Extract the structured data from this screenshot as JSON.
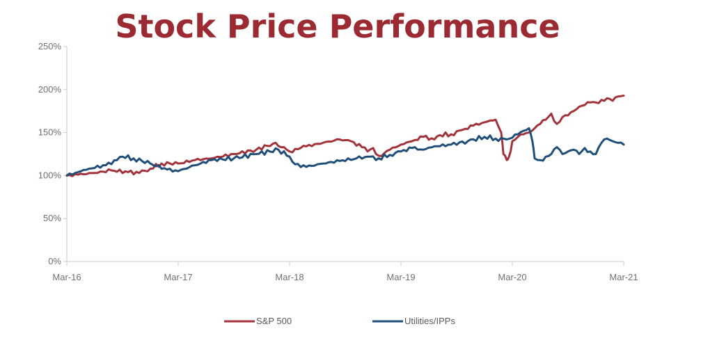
{
  "chart_data": {
    "type": "line",
    "title": "Stock Price Performance",
    "xlabel": "",
    "ylabel": "",
    "x_tick_labels": [
      "Mar-16",
      "Mar-17",
      "Mar-18",
      "Mar-19",
      "Mar-20",
      "Mar-21"
    ],
    "y_tick_labels": [
      "0%",
      "50%",
      "100%",
      "150%",
      "200%",
      "250%"
    ],
    "xlim": [
      0,
      5
    ],
    "ylim": [
      0,
      250
    ],
    "grid": false,
    "legend_position": "bottom",
    "series": [
      {
        "name": "S&P 500",
        "color": "#a3333a",
        "x": [
          0,
          0.1,
          0.25,
          0.4,
          0.55,
          0.65,
          0.75,
          0.85,
          1.0,
          1.15,
          1.3,
          1.5,
          1.7,
          1.85,
          1.95,
          2.0,
          2.05,
          2.15,
          2.3,
          2.45,
          2.55,
          2.65,
          2.7,
          2.75,
          2.8,
          2.85,
          2.9,
          3.0,
          3.1,
          3.2,
          3.3,
          3.35,
          3.45,
          3.55,
          3.65,
          3.75,
          3.85,
          3.9,
          3.92,
          3.95,
          3.97,
          4.0,
          4.05,
          4.1,
          4.15,
          4.2,
          4.25,
          4.3,
          4.35,
          4.4,
          4.45,
          4.5,
          4.55,
          4.6,
          4.65,
          4.7,
          4.75,
          4.8,
          4.85,
          4.9,
          4.95,
          5.0
        ],
        "values": [
          100,
          101,
          103,
          106,
          104,
          103,
          108,
          114,
          114,
          118,
          120,
          125,
          130,
          137,
          133,
          128,
          131,
          134,
          138,
          142,
          140,
          133,
          128,
          132,
          123,
          126,
          130,
          136,
          140,
          145,
          142,
          147,
          148,
          153,
          158,
          162,
          165,
          150,
          125,
          118,
          122,
          140,
          145,
          148,
          150,
          155,
          160,
          165,
          172,
          160,
          168,
          170,
          175,
          180,
          182,
          185,
          185,
          188,
          190,
          187,
          192,
          193
        ]
      },
      {
        "name": "Utilities/IPPs",
        "color": "#1f4e79",
        "x": [
          0,
          0.1,
          0.2,
          0.35,
          0.45,
          0.5,
          0.6,
          0.75,
          0.9,
          1.0,
          1.15,
          1.3,
          1.5,
          1.7,
          1.9,
          2.0,
          2.05,
          2.15,
          2.3,
          2.45,
          2.6,
          2.7,
          2.8,
          2.9,
          3.0,
          3.1,
          3.2,
          3.3,
          3.45,
          3.6,
          3.75,
          3.85,
          3.95,
          4.0,
          4.05,
          4.1,
          4.15,
          4.18,
          4.2,
          4.25,
          4.3,
          4.35,
          4.4,
          4.45,
          4.5,
          4.55,
          4.6,
          4.65,
          4.7,
          4.75,
          4.8,
          4.85,
          4.9,
          4.95,
          5.0
        ],
        "values": [
          100,
          104,
          108,
          112,
          118,
          122,
          120,
          114,
          107,
          105,
          112,
          118,
          120,
          125,
          130,
          122,
          113,
          110,
          114,
          117,
          120,
          122,
          120,
          124,
          128,
          132,
          130,
          134,
          136,
          140,
          145,
          143,
          142,
          144,
          148,
          152,
          155,
          140,
          120,
          118,
          122,
          125,
          133,
          125,
          128,
          130,
          125,
          132,
          128,
          125,
          138,
          143,
          140,
          138,
          136
        ]
      }
    ]
  }
}
